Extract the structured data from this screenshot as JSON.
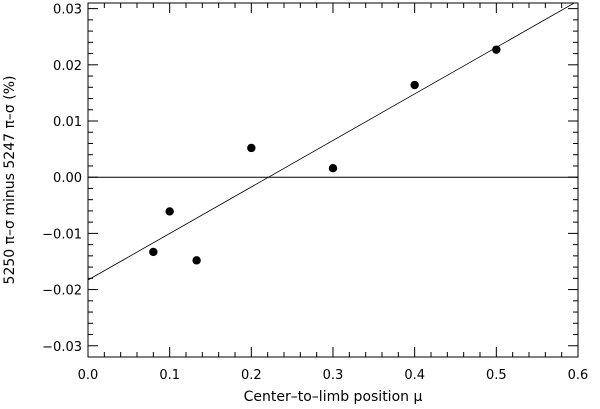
{
  "chart_data": {
    "type": "scatter",
    "title": "",
    "xlabel": "Center–to–limb position μ",
    "ylabel": "5250 π–σ minus 5247 π–σ  (%)",
    "xlim": [
      0.0,
      0.6
    ],
    "ylim": [
      -0.032,
      0.031
    ],
    "x_ticks": [
      0.0,
      0.1,
      0.2,
      0.3,
      0.4,
      0.5,
      0.6
    ],
    "x_tick_labels": [
      "0.0",
      "0.1",
      "0.2",
      "0.3",
      "0.4",
      "0.5",
      "0.6"
    ],
    "y_ticks": [
      -0.03,
      -0.02,
      -0.01,
      0.0,
      0.01,
      0.02,
      0.03
    ],
    "y_tick_labels": [
      "−0.03",
      "−0.02",
      "−0.01",
      "0.00",
      "0.01",
      "0.02",
      "0.03"
    ],
    "grid": false,
    "points": [
      {
        "x": 0.08,
        "y": -0.0133
      },
      {
        "x": 0.1,
        "y": -0.0061
      },
      {
        "x": 0.133,
        "y": -0.0148
      },
      {
        "x": 0.2,
        "y": 0.0052
      },
      {
        "x": 0.3,
        "y": 0.0016
      },
      {
        "x": 0.4,
        "y": 0.0164
      },
      {
        "x": 0.5,
        "y": 0.0227
      }
    ],
    "fit_line": {
      "intercept": -0.0183,
      "slope": 0.0828
    },
    "reference_line_y": 0.0
  }
}
